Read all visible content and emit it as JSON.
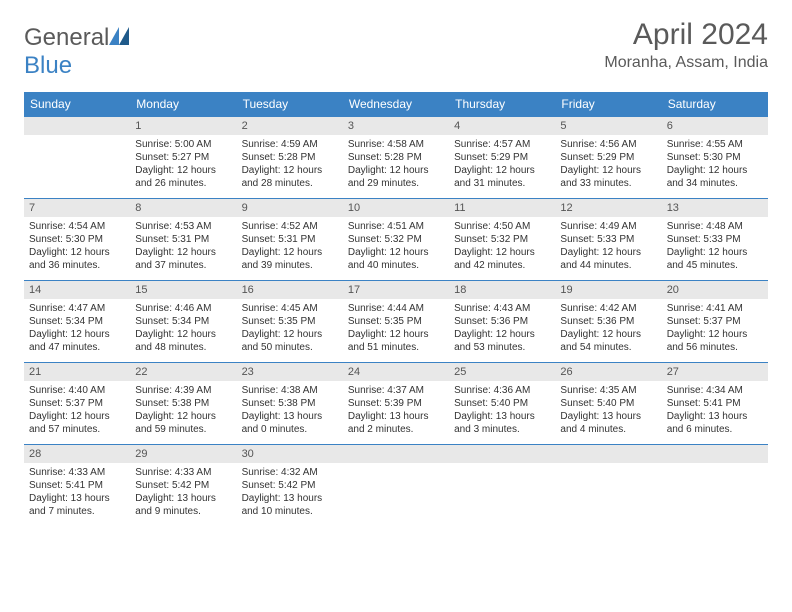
{
  "logo": {
    "text_general": "General",
    "text_blue": "Blue"
  },
  "title": "April 2024",
  "location": "Moranha, Assam, India",
  "day_headers": [
    "Sunday",
    "Monday",
    "Tuesday",
    "Wednesday",
    "Thursday",
    "Friday",
    "Saturday"
  ],
  "colors": {
    "header_bg": "#3b82c4",
    "header_text": "#ffffff",
    "daynum_bg": "#e8e8e8",
    "row_border": "#3b82c4",
    "body_text": "#333333",
    "title_text": "#5a5a5a"
  },
  "layout": {
    "columns": 7,
    "rows": 5,
    "cell_font_size_pt": 7.5,
    "header_font_size_pt": 9,
    "title_font_size_pt": 22
  },
  "weeks": [
    [
      null,
      {
        "n": "1",
        "sunrise": "Sunrise: 5:00 AM",
        "sunset": "Sunset: 5:27 PM",
        "daylight": "Daylight: 12 hours and 26 minutes."
      },
      {
        "n": "2",
        "sunrise": "Sunrise: 4:59 AM",
        "sunset": "Sunset: 5:28 PM",
        "daylight": "Daylight: 12 hours and 28 minutes."
      },
      {
        "n": "3",
        "sunrise": "Sunrise: 4:58 AM",
        "sunset": "Sunset: 5:28 PM",
        "daylight": "Daylight: 12 hours and 29 minutes."
      },
      {
        "n": "4",
        "sunrise": "Sunrise: 4:57 AM",
        "sunset": "Sunset: 5:29 PM",
        "daylight": "Daylight: 12 hours and 31 minutes."
      },
      {
        "n": "5",
        "sunrise": "Sunrise: 4:56 AM",
        "sunset": "Sunset: 5:29 PM",
        "daylight": "Daylight: 12 hours and 33 minutes."
      },
      {
        "n": "6",
        "sunrise": "Sunrise: 4:55 AM",
        "sunset": "Sunset: 5:30 PM",
        "daylight": "Daylight: 12 hours and 34 minutes."
      }
    ],
    [
      {
        "n": "7",
        "sunrise": "Sunrise: 4:54 AM",
        "sunset": "Sunset: 5:30 PM",
        "daylight": "Daylight: 12 hours and 36 minutes."
      },
      {
        "n": "8",
        "sunrise": "Sunrise: 4:53 AM",
        "sunset": "Sunset: 5:31 PM",
        "daylight": "Daylight: 12 hours and 37 minutes."
      },
      {
        "n": "9",
        "sunrise": "Sunrise: 4:52 AM",
        "sunset": "Sunset: 5:31 PM",
        "daylight": "Daylight: 12 hours and 39 minutes."
      },
      {
        "n": "10",
        "sunrise": "Sunrise: 4:51 AM",
        "sunset": "Sunset: 5:32 PM",
        "daylight": "Daylight: 12 hours and 40 minutes."
      },
      {
        "n": "11",
        "sunrise": "Sunrise: 4:50 AM",
        "sunset": "Sunset: 5:32 PM",
        "daylight": "Daylight: 12 hours and 42 minutes."
      },
      {
        "n": "12",
        "sunrise": "Sunrise: 4:49 AM",
        "sunset": "Sunset: 5:33 PM",
        "daylight": "Daylight: 12 hours and 44 minutes."
      },
      {
        "n": "13",
        "sunrise": "Sunrise: 4:48 AM",
        "sunset": "Sunset: 5:33 PM",
        "daylight": "Daylight: 12 hours and 45 minutes."
      }
    ],
    [
      {
        "n": "14",
        "sunrise": "Sunrise: 4:47 AM",
        "sunset": "Sunset: 5:34 PM",
        "daylight": "Daylight: 12 hours and 47 minutes."
      },
      {
        "n": "15",
        "sunrise": "Sunrise: 4:46 AM",
        "sunset": "Sunset: 5:34 PM",
        "daylight": "Daylight: 12 hours and 48 minutes."
      },
      {
        "n": "16",
        "sunrise": "Sunrise: 4:45 AM",
        "sunset": "Sunset: 5:35 PM",
        "daylight": "Daylight: 12 hours and 50 minutes."
      },
      {
        "n": "17",
        "sunrise": "Sunrise: 4:44 AM",
        "sunset": "Sunset: 5:35 PM",
        "daylight": "Daylight: 12 hours and 51 minutes."
      },
      {
        "n": "18",
        "sunrise": "Sunrise: 4:43 AM",
        "sunset": "Sunset: 5:36 PM",
        "daylight": "Daylight: 12 hours and 53 minutes."
      },
      {
        "n": "19",
        "sunrise": "Sunrise: 4:42 AM",
        "sunset": "Sunset: 5:36 PM",
        "daylight": "Daylight: 12 hours and 54 minutes."
      },
      {
        "n": "20",
        "sunrise": "Sunrise: 4:41 AM",
        "sunset": "Sunset: 5:37 PM",
        "daylight": "Daylight: 12 hours and 56 minutes."
      }
    ],
    [
      {
        "n": "21",
        "sunrise": "Sunrise: 4:40 AM",
        "sunset": "Sunset: 5:37 PM",
        "daylight": "Daylight: 12 hours and 57 minutes."
      },
      {
        "n": "22",
        "sunrise": "Sunrise: 4:39 AM",
        "sunset": "Sunset: 5:38 PM",
        "daylight": "Daylight: 12 hours and 59 minutes."
      },
      {
        "n": "23",
        "sunrise": "Sunrise: 4:38 AM",
        "sunset": "Sunset: 5:38 PM",
        "daylight": "Daylight: 13 hours and 0 minutes."
      },
      {
        "n": "24",
        "sunrise": "Sunrise: 4:37 AM",
        "sunset": "Sunset: 5:39 PM",
        "daylight": "Daylight: 13 hours and 2 minutes."
      },
      {
        "n": "25",
        "sunrise": "Sunrise: 4:36 AM",
        "sunset": "Sunset: 5:40 PM",
        "daylight": "Daylight: 13 hours and 3 minutes."
      },
      {
        "n": "26",
        "sunrise": "Sunrise: 4:35 AM",
        "sunset": "Sunset: 5:40 PM",
        "daylight": "Daylight: 13 hours and 4 minutes."
      },
      {
        "n": "27",
        "sunrise": "Sunrise: 4:34 AM",
        "sunset": "Sunset: 5:41 PM",
        "daylight": "Daylight: 13 hours and 6 minutes."
      }
    ],
    [
      {
        "n": "28",
        "sunrise": "Sunrise: 4:33 AM",
        "sunset": "Sunset: 5:41 PM",
        "daylight": "Daylight: 13 hours and 7 minutes."
      },
      {
        "n": "29",
        "sunrise": "Sunrise: 4:33 AM",
        "sunset": "Sunset: 5:42 PM",
        "daylight": "Daylight: 13 hours and 9 minutes."
      },
      {
        "n": "30",
        "sunrise": "Sunrise: 4:32 AM",
        "sunset": "Sunset: 5:42 PM",
        "daylight": "Daylight: 13 hours and 10 minutes."
      },
      null,
      null,
      null,
      null
    ]
  ]
}
